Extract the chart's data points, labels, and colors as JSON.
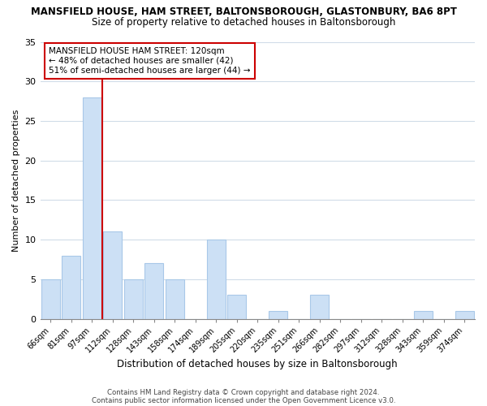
{
  "title": "MANSFIELD HOUSE, HAM STREET, BALTONSBOROUGH, GLASTONBURY, BA6 8PT",
  "subtitle": "Size of property relative to detached houses in Baltonsborough",
  "xlabel": "Distribution of detached houses by size in Baltonsborough",
  "ylabel": "Number of detached properties",
  "footer_line1": "Contains HM Land Registry data © Crown copyright and database right 2024.",
  "footer_line2": "Contains public sector information licensed under the Open Government Licence v3.0.",
  "bar_labels": [
    "66sqm",
    "81sqm",
    "97sqm",
    "112sqm",
    "128sqm",
    "143sqm",
    "158sqm",
    "174sqm",
    "189sqm",
    "205sqm",
    "220sqm",
    "235sqm",
    "251sqm",
    "266sqm",
    "282sqm",
    "297sqm",
    "312sqm",
    "328sqm",
    "343sqm",
    "359sqm",
    "374sqm"
  ],
  "bar_values": [
    5,
    8,
    28,
    11,
    5,
    7,
    5,
    0,
    10,
    3,
    0,
    1,
    0,
    3,
    0,
    0,
    0,
    0,
    1,
    0,
    1
  ],
  "bar_color": "#cce0f5",
  "bar_edge_color": "#a8c8e8",
  "highlight_color": "#cc0000",
  "annotation_title": "MANSFIELD HOUSE HAM STREET: 120sqm",
  "annotation_line1": "← 48% of detached houses are smaller (42)",
  "annotation_line2": "51% of semi-detached houses are larger (44) →",
  "annotation_box_color": "#ffffff",
  "annotation_box_edge_color": "#cc0000",
  "ylim": [
    0,
    35
  ],
  "yticks": [
    0,
    5,
    10,
    15,
    20,
    25,
    30,
    35
  ],
  "background_color": "#ffffff",
  "grid_color": "#d0dce8"
}
